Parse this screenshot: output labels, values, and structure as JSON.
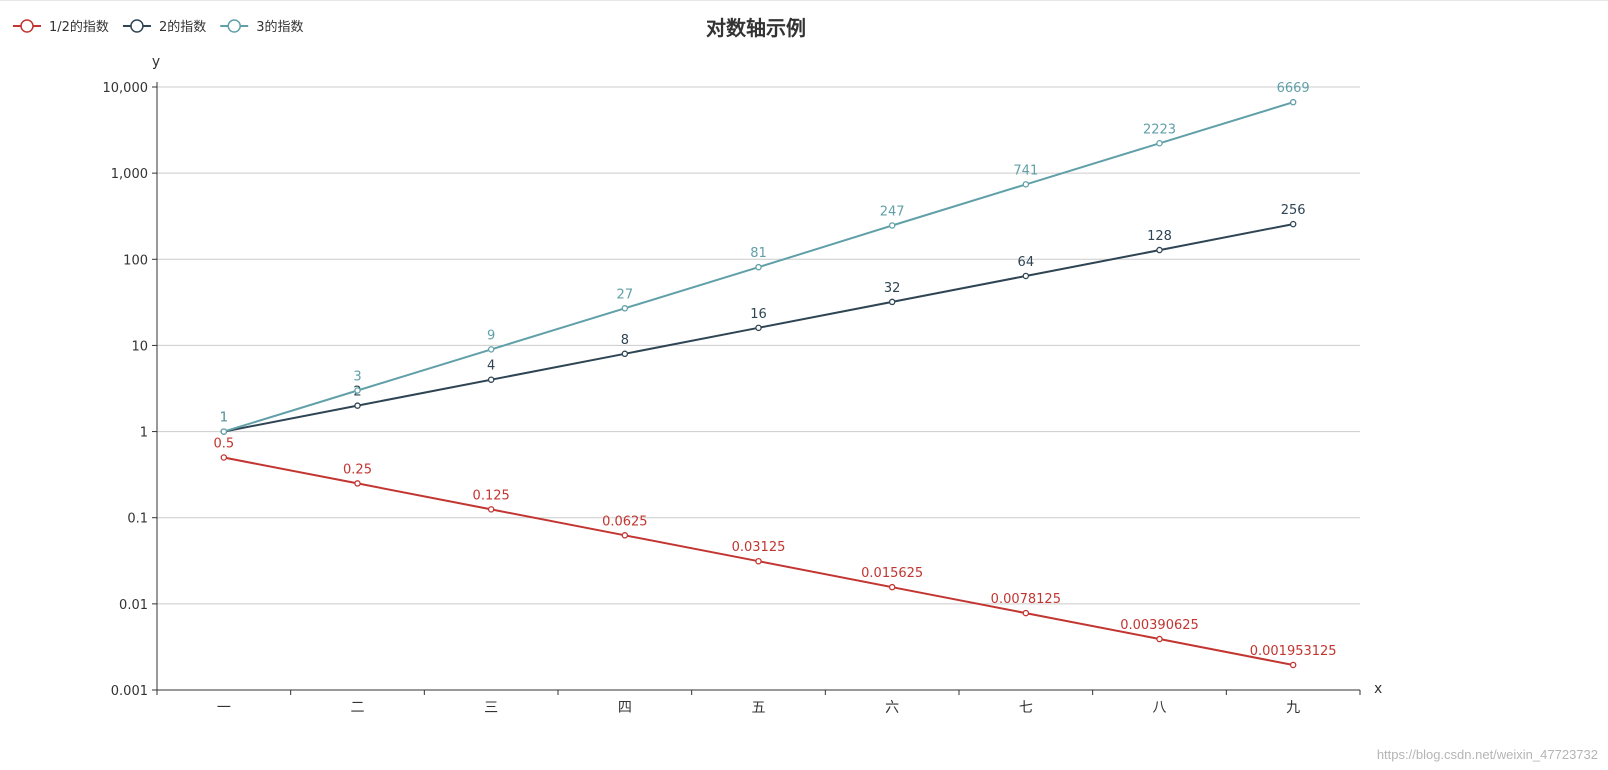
{
  "chart_data": {
    "type": "line",
    "title": "对数轴示例",
    "xlabel": "x",
    "ylabel": "y",
    "y_scale": "log",
    "ylim": [
      0.001,
      10000
    ],
    "yticks": [
      "0.001",
      "0.01",
      "0.1",
      "1",
      "10",
      "100",
      "1,000",
      "10,000"
    ],
    "grid": true,
    "legend_position": "top-left",
    "categories": [
      "一",
      "二",
      "三",
      "四",
      "五",
      "六",
      "七",
      "八",
      "九"
    ],
    "series": [
      {
        "name": "1/2的指数",
        "color": "#c23531",
        "values": [
          0.5,
          0.25,
          0.125,
          0.0625,
          0.03125,
          0.015625,
          0.0078125,
          0.00390625,
          0.001953125
        ],
        "labels": [
          "0.5",
          "0.25",
          "0.125",
          "0.0625",
          "0.03125",
          "0.015625",
          "0.0078125",
          "0.00390625",
          "0.001953125"
        ]
      },
      {
        "name": "2的指数",
        "color": "#2f4554",
        "values": [
          1,
          2,
          4,
          8,
          16,
          32,
          64,
          128,
          256
        ],
        "labels": [
          "1",
          "2",
          "4",
          "8",
          "16",
          "32",
          "64",
          "128",
          "256"
        ]
      },
      {
        "name": "3的指数",
        "color": "#61a0a8",
        "values": [
          1,
          3,
          9,
          27,
          81,
          247,
          741,
          2223,
          6669
        ],
        "labels": [
          "1",
          "3",
          "9",
          "27",
          "81",
          "247",
          "741",
          "2223",
          "6669"
        ]
      }
    ]
  },
  "watermark": "https://blog.csdn.net/weixin_47723732"
}
